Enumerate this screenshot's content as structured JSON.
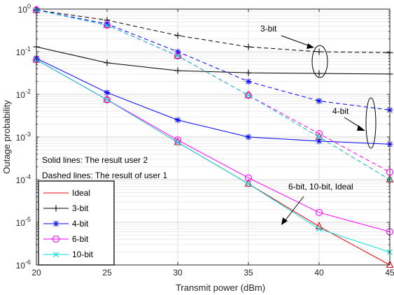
{
  "chart_data": {
    "type": "line",
    "xlabel": "Transmit power (dBm)",
    "ylabel": "Outage probability",
    "xlim": [
      20,
      45
    ],
    "ylim_log10": [
      -6,
      0
    ],
    "y_scale": "log",
    "grid": true,
    "x_ticks": [
      "20",
      "25",
      "30",
      "35",
      "40",
      "45"
    ],
    "y_ticks": [
      {
        "base": "10",
        "exp": "0"
      },
      {
        "base": "10",
        "exp": "-1"
      },
      {
        "base": "10",
        "exp": "-2"
      },
      {
        "base": "10",
        "exp": "-3"
      },
      {
        "base": "10",
        "exp": "-4"
      },
      {
        "base": "10",
        "exp": "-5"
      },
      {
        "base": "10",
        "exp": "-6"
      }
    ],
    "x": [
      20,
      25,
      30,
      35,
      40,
      45
    ],
    "series": [
      {
        "name": "Ideal",
        "style": "solid",
        "color": "#e8000b",
        "marker": "triangle",
        "values": [
          0.065,
          0.0075,
          0.00075,
          8e-05,
          8e-06,
          1e-06
        ],
        "legend": true
      },
      {
        "name": "Ideal",
        "style": "dashed",
        "color": "#e8000b",
        "marker": "triangle",
        "values": [
          0.95,
          0.42,
          0.08,
          0.0095,
          0.001,
          0.0001
        ],
        "legend": false
      },
      {
        "name": "3-bit",
        "style": "solid",
        "color": "#000000",
        "marker": "plus",
        "values": [
          0.13,
          0.055,
          0.036,
          0.032,
          0.031,
          0.03
        ],
        "legend": true
      },
      {
        "name": "3-bit",
        "style": "dashed",
        "color": "#000000",
        "marker": "plus",
        "values": [
          0.95,
          0.55,
          0.24,
          0.13,
          0.1,
          0.095
        ],
        "legend": false
      },
      {
        "name": "4-bit",
        "style": "solid",
        "color": "#0000ff",
        "marker": "star",
        "values": [
          0.07,
          0.011,
          0.0025,
          0.001,
          0.0008,
          0.00068
        ],
        "legend": true
      },
      {
        "name": "4-bit",
        "style": "dashed",
        "color": "#0000ff",
        "marker": "star",
        "values": [
          0.95,
          0.45,
          0.1,
          0.02,
          0.007,
          0.0043
        ],
        "legend": false
      },
      {
        "name": "6-bit",
        "style": "solid",
        "color": "#ff00ff",
        "marker": "circle",
        "values": [
          0.065,
          0.0075,
          0.00085,
          0.00011,
          1.7e-05,
          6e-06
        ],
        "legend": true
      },
      {
        "name": "6-bit",
        "style": "dashed",
        "color": "#ff00ff",
        "marker": "circle",
        "values": [
          0.95,
          0.42,
          0.08,
          0.0095,
          0.0012,
          0.00015
        ],
        "legend": false
      },
      {
        "name": "10-bit",
        "style": "solid",
        "color": "#00e0e0",
        "marker": "x",
        "values": [
          0.065,
          0.0075,
          0.00075,
          8e-05,
          7e-06,
          2e-06
        ],
        "legend": true
      },
      {
        "name": "10-bit",
        "style": "dashed",
        "color": "#00e0e0",
        "marker": "x",
        "values": [
          0.95,
          0.42,
          0.08,
          0.0095,
          0.001,
          0.0001
        ],
        "legend": false
      }
    ],
    "annotations": {
      "solid_note": "Solid lines: The result user 2",
      "dashed_note": "Dashed lines: The result of user 1",
      "label_3bit": "3-bit",
      "label_4bit": "4-bit",
      "label_6bit": "6-bit, 10-bit, Ideal"
    },
    "legend_placement": "bottom-left"
  }
}
